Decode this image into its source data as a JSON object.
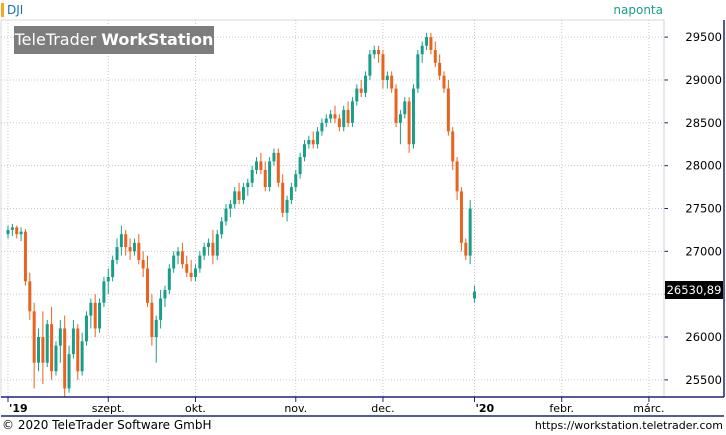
{
  "header": {
    "symbol": "DJI",
    "interval": "naponta",
    "brand_light": "TeleTrader",
    "brand_bold": "WorkStation"
  },
  "footer": {
    "copyright": "© 2020 TeleTrader Software GmbH",
    "url": "https://workstation.teletrader.com"
  },
  "colors": {
    "up": "#1a9e8a",
    "down": "#e8631f",
    "grid": "#c8c8c8",
    "axis": "#1a237e",
    "brand_bg": "#7d7d7d"
  },
  "chart_data": {
    "type": "candlestick",
    "symbol": "DJI",
    "interval": "naponta",
    "last_price_label": "26530,89",
    "ylim": [
      25300,
      29700
    ],
    "y_ticks": [
      {
        "value": 25500,
        "label": "25500"
      },
      {
        "value": 26000,
        "label": "26000"
      },
      {
        "value": 26500,
        "label": "26500"
      },
      {
        "value": 27000,
        "label": "27000"
      },
      {
        "value": 27500,
        "label": "27500"
      },
      {
        "value": 28000,
        "label": "28000"
      },
      {
        "value": 28500,
        "label": "28500"
      },
      {
        "value": 29000,
        "label": "29000"
      },
      {
        "value": 29500,
        "label": "29500"
      }
    ],
    "x_ticks": [
      {
        "index": 0,
        "label": "'19"
      },
      {
        "index": 23,
        "label": "szept."
      },
      {
        "index": 43,
        "label": "okt."
      },
      {
        "index": 66,
        "label": "nov."
      },
      {
        "index": 86,
        "label": "dec."
      },
      {
        "index": 107,
        "label": "'20"
      },
      {
        "index": 127,
        "label": "febr."
      },
      {
        "index": 147,
        "label": "márc."
      }
    ],
    "candles": [
      [
        27200,
        27300,
        27150,
        27250
      ],
      [
        27250,
        27320,
        27180,
        27280
      ],
      [
        27280,
        27300,
        27150,
        27200
      ],
      [
        27200,
        27280,
        27120,
        27230
      ],
      [
        27230,
        27260,
        26600,
        26650
      ],
      [
        26650,
        26750,
        26200,
        26300
      ],
      [
        26300,
        26400,
        25400,
        25700
      ],
      [
        25700,
        26100,
        25600,
        26000
      ],
      [
        26000,
        26300,
        25450,
        25700
      ],
      [
        25700,
        26200,
        25650,
        26150
      ],
      [
        26150,
        26350,
        25500,
        25600
      ],
      [
        25600,
        25950,
        25550,
        25900
      ],
      [
        25900,
        26200,
        25700,
        26100
      ],
      [
        26100,
        26250,
        25300,
        25400
      ],
      [
        25400,
        25900,
        25350,
        25800
      ],
      [
        25800,
        26200,
        25750,
        26100
      ],
      [
        26100,
        26150,
        25500,
        25600
      ],
      [
        25600,
        26050,
        25550,
        25950
      ],
      [
        25950,
        26300,
        25900,
        26250
      ],
      [
        26250,
        26450,
        26100,
        26400
      ],
      [
        26400,
        26500,
        26000,
        26100
      ],
      [
        26100,
        26450,
        26050,
        26400
      ],
      [
        26400,
        26700,
        26350,
        26650
      ],
      [
        26650,
        26800,
        26500,
        26700
      ],
      [
        26700,
        26950,
        26650,
        26900
      ],
      [
        26900,
        27150,
        26850,
        27050
      ],
      [
        27050,
        27300,
        26950,
        27200
      ],
      [
        27200,
        27250,
        26950,
        27050
      ],
      [
        27050,
        27150,
        26900,
        27000
      ],
      [
        27000,
        27150,
        26950,
        27100
      ],
      [
        27100,
        27200,
        26850,
        26900
      ],
      [
        26900,
        27000,
        26700,
        26800
      ],
      [
        26800,
        26950,
        26350,
        26400
      ],
      [
        26400,
        26500,
        25900,
        26000
      ],
      [
        26000,
        26250,
        25700,
        26200
      ],
      [
        26200,
        26550,
        26100,
        26450
      ],
      [
        26450,
        26600,
        26350,
        26550
      ],
      [
        26550,
        26850,
        26500,
        26800
      ],
      [
        26800,
        27000,
        26750,
        26950
      ],
      [
        26950,
        27050,
        26850,
        27000
      ],
      [
        27000,
        27100,
        26800,
        26850
      ],
      [
        26850,
        26950,
        26700,
        26750
      ],
      [
        26750,
        26900,
        26650,
        26700
      ],
      [
        26700,
        26850,
        26650,
        26800
      ],
      [
        26800,
        27000,
        26750,
        26950
      ],
      [
        26950,
        27100,
        26900,
        27050
      ],
      [
        27050,
        27150,
        26950,
        27100
      ],
      [
        27100,
        27250,
        26850,
        26950
      ],
      [
        26950,
        27250,
        26900,
        27200
      ],
      [
        27200,
        27400,
        27150,
        27350
      ],
      [
        27350,
        27550,
        27300,
        27500
      ],
      [
        27500,
        27600,
        27400,
        27550
      ],
      [
        27550,
        27750,
        27500,
        27700
      ],
      [
        27700,
        27800,
        27550,
        27600
      ],
      [
        27600,
        27800,
        27550,
        27750
      ],
      [
        27750,
        27850,
        27650,
        27800
      ],
      [
        27800,
        28000,
        27750,
        27950
      ],
      [
        27950,
        28100,
        27900,
        28050
      ],
      [
        28050,
        28150,
        27900,
        27950
      ],
      [
        27950,
        28050,
        27700,
        27750
      ],
      [
        27750,
        28100,
        27700,
        28050
      ],
      [
        28050,
        28200,
        28000,
        28150
      ],
      [
        28150,
        28200,
        27750,
        27800
      ],
      [
        27800,
        27900,
        27400,
        27450
      ],
      [
        27450,
        27650,
        27350,
        27600
      ],
      [
        27600,
        27800,
        27550,
        27750
      ],
      [
        27750,
        27950,
        27700,
        27900
      ],
      [
        27900,
        28150,
        27850,
        28100
      ],
      [
        28100,
        28300,
        28050,
        28250
      ],
      [
        28250,
        28350,
        28200,
        28300
      ],
      [
        28300,
        28400,
        28200,
        28250
      ],
      [
        28250,
        28450,
        28200,
        28400
      ],
      [
        28400,
        28550,
        28350,
        28500
      ],
      [
        28500,
        28600,
        28450,
        28550
      ],
      [
        28550,
        28650,
        28500,
        28600
      ],
      [
        28600,
        28700,
        28500,
        28550
      ],
      [
        28550,
        28600,
        28400,
        28450
      ],
      [
        28450,
        28700,
        28400,
        28650
      ],
      [
        28650,
        28750,
        28450,
        28500
      ],
      [
        28500,
        28800,
        28450,
        28750
      ],
      [
        28750,
        28950,
        28700,
        28900
      ],
      [
        28900,
        29000,
        28800,
        28850
      ],
      [
        28850,
        29100,
        28800,
        29050
      ],
      [
        29050,
        29350,
        29000,
        29300
      ],
      [
        29300,
        29400,
        29250,
        29350
      ],
      [
        29350,
        29400,
        29200,
        29300
      ],
      [
        29300,
        29350,
        28900,
        29000
      ],
      [
        29000,
        29100,
        28900,
        29050
      ],
      [
        29050,
        29100,
        28850,
        28900
      ],
      [
        28900,
        28950,
        28450,
        28500
      ],
      [
        28500,
        28650,
        28250,
        28600
      ],
      [
        28600,
        28800,
        28550,
        28750
      ],
      [
        28750,
        28800,
        28150,
        28250
      ],
      [
        28250,
        28950,
        28200,
        28900
      ],
      [
        28900,
        29350,
        28850,
        29300
      ],
      [
        29300,
        29450,
        29200,
        29400
      ],
      [
        29400,
        29550,
        29350,
        29500
      ],
      [
        29500,
        29550,
        29300,
        29350
      ],
      [
        29350,
        29450,
        29150,
        29200
      ],
      [
        29200,
        29300,
        29000,
        29050
      ],
      [
        29050,
        29100,
        28850,
        28900
      ],
      [
        28900,
        29000,
        28350,
        28400
      ],
      [
        28400,
        28450,
        27950,
        28050
      ],
      [
        28050,
        28100,
        27600,
        27700
      ],
      [
        27700,
        27750,
        27000,
        27100
      ],
      [
        27100,
        27150,
        26900,
        26950
      ],
      [
        26950,
        27600,
        26850,
        27500
      ],
      [
        26450,
        26600,
        26400,
        26530
      ]
    ]
  }
}
